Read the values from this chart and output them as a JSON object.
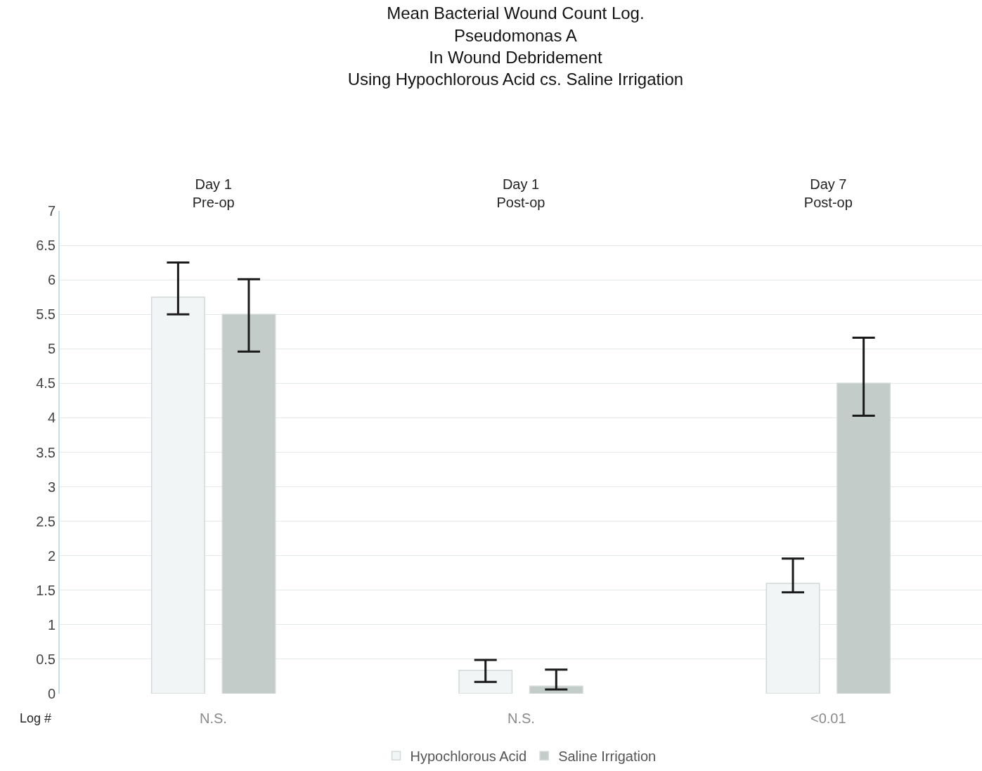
{
  "chart_data": {
    "type": "bar",
    "title": "Mean Bacterial Wound Count Log.\nPseudomonas A\nIn Wound Debridement\nUsing Hypochlorous Acid cs. Saline Irrigation",
    "ylabel": "Log #",
    "categories": [
      "Day 1\nPre-op",
      "Day 1\nPost-op",
      "Day 7\nPost-op"
    ],
    "series": [
      {
        "name": "Hypochlorous Acid",
        "color": "#f2f5f6",
        "values": [
          5.75,
          0.34,
          1.6
        ],
        "errors": [
          [
            5.5,
            6.25
          ],
          [
            0.17,
            0.49
          ],
          [
            1.47,
            1.96
          ]
        ]
      },
      {
        "name": "Saline Irrigation",
        "color": "#c3ccc8",
        "values": [
          5.5,
          0.11,
          4.5
        ],
        "errors": [
          [
            4.96,
            6.01
          ],
          [
            0.06,
            0.35
          ],
          [
            4.03,
            5.16
          ]
        ]
      }
    ],
    "annotations": [
      "N.S.",
      "N.S.",
      "<0.01"
    ],
    "ylim": [
      0,
      7
    ],
    "yticks": [
      0,
      0.5,
      1,
      1.5,
      2,
      2.5,
      3,
      3.5,
      4,
      4.5,
      5,
      5.5,
      6,
      6.5,
      7
    ],
    "grid": "y",
    "legend": "bottom"
  }
}
